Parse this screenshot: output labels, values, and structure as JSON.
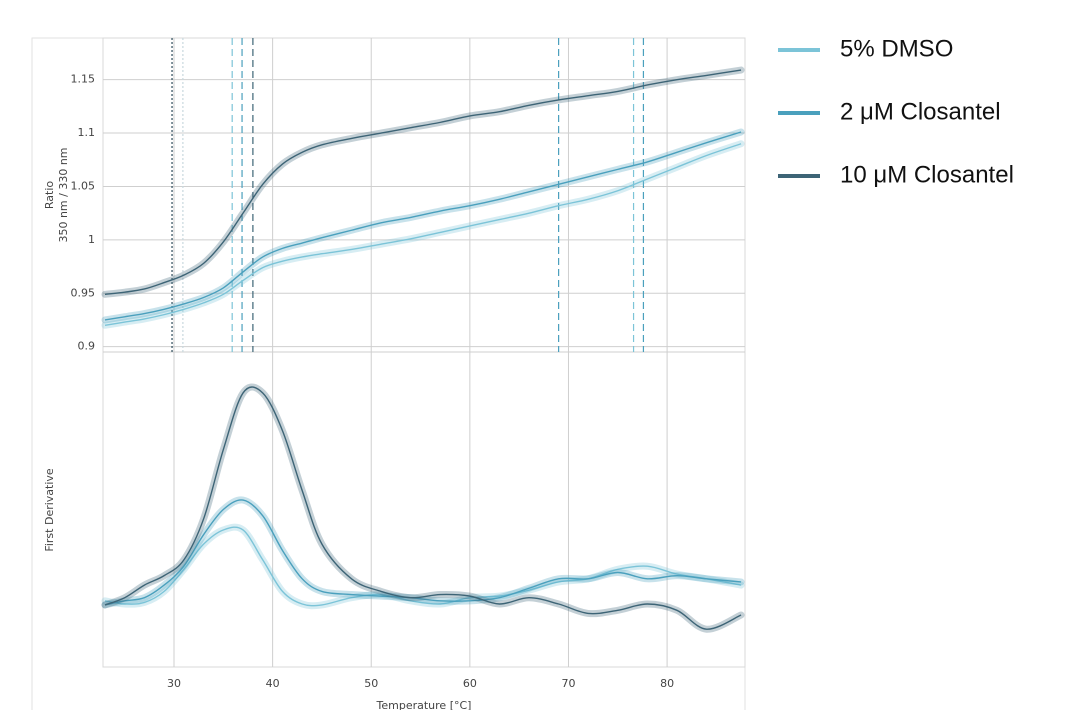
{
  "chart_data": [
    {
      "type": "line",
      "ylabel": [
        "Ratio",
        "350 nm / 330 nm"
      ],
      "x": [
        23,
        25,
        27,
        29,
        31,
        33,
        35,
        37,
        39,
        41,
        43,
        45,
        48,
        51,
        54,
        57,
        60,
        63,
        66,
        69,
        72,
        75,
        78,
        81,
        84,
        87.5
      ],
      "xlim": [
        22.8,
        87.9
      ],
      "xticks": [
        30,
        40,
        50,
        60,
        70,
        80
      ],
      "ylim": [
        0.895,
        1.189
      ],
      "yticks": [
        0.9,
        0.95,
        1,
        1.05,
        1.1,
        1.15
      ],
      "grid": true,
      "legend": "right",
      "series": [
        {
          "name": "5% DMSO",
          "color": "#7cc4d8",
          "values": [
            0.92,
            0.923,
            0.926,
            0.93,
            0.935,
            0.941,
            0.949,
            0.962,
            0.974,
            0.98,
            0.984,
            0.987,
            0.991,
            0.996,
            1.001,
            1.007,
            1.013,
            1.019,
            1.025,
            1.032,
            1.038,
            1.046,
            1.057,
            1.068,
            1.079,
            1.09
          ]
        },
        {
          "name": "2 μM Closantel",
          "color": "#4aa0bd",
          "values": [
            0.925,
            0.928,
            0.931,
            0.935,
            0.94,
            0.946,
            0.955,
            0.97,
            0.984,
            0.992,
            0.997,
            1.002,
            1.009,
            1.016,
            1.021,
            1.027,
            1.032,
            1.038,
            1.045,
            1.052,
            1.059,
            1.066,
            1.073,
            1.082,
            1.091,
            1.101
          ]
        },
        {
          "name": "10 μM Closantel",
          "color": "#3d6476",
          "values": [
            0.949,
            0.951,
            0.954,
            0.96,
            0.967,
            0.978,
            0.998,
            1.025,
            1.052,
            1.071,
            1.082,
            1.089,
            1.095,
            1.1,
            1.105,
            1.11,
            1.116,
            1.12,
            1.126,
            1.131,
            1.135,
            1.139,
            1.145,
            1.15,
            1.154,
            1.159
          ]
        }
      ],
      "vlines": [
        {
          "x": 29.8,
          "color": "#2c4a5a",
          "style": "dotted"
        },
        {
          "x": 30.9,
          "color": "#c8d8de",
          "style": "dotted"
        },
        {
          "x": 35.9,
          "color": "#7cc4d8",
          "style": "dashed"
        },
        {
          "x": 36.9,
          "color": "#4aa0bd",
          "style": "dashed"
        },
        {
          "x": 38.0,
          "color": "#3d6476",
          "style": "dashed"
        },
        {
          "x": 69.0,
          "color": "#4aa0bd",
          "style": "dashed"
        },
        {
          "x": 76.6,
          "color": "#7cc4d8",
          "style": "dashed"
        },
        {
          "x": 77.6,
          "color": "#4aa0bd",
          "style": "dashed"
        }
      ]
    },
    {
      "type": "line",
      "ylabel": "First Derivative",
      "xlabel": "Temperature [°C]",
      "x": [
        23,
        25,
        27,
        29,
        31,
        33,
        35,
        37,
        39,
        41,
        43,
        45,
        48,
        51,
        54,
        57,
        60,
        63,
        66,
        69,
        72,
        75,
        78,
        81,
        84,
        87.5
      ],
      "xlim": [
        22.8,
        87.9
      ],
      "xticks": [
        30,
        40,
        50,
        60,
        70,
        80
      ],
      "ylim": [
        0,
        100
      ],
      "grid": true,
      "series": [
        {
          "color": "#7cc4d8",
          "values": [
            21,
            20,
            20.5,
            24,
            31,
            39,
            43.5,
            43.5,
            34,
            24,
            20,
            19.7,
            22,
            23,
            21,
            20,
            22,
            22.5,
            24.4,
            27,
            28,
            31,
            32,
            29.5,
            28,
            26
          ]
        },
        {
          "color": "#4aa0bd",
          "values": [
            19.7,
            21,
            22,
            26,
            32,
            42,
            50,
            53,
            48,
            37,
            28,
            24,
            23,
            22.5,
            22,
            21,
            21,
            22,
            25,
            28,
            28,
            30,
            28,
            29,
            28,
            27
          ]
        },
        {
          "color": "#3d6476",
          "values": [
            19.7,
            22,
            26,
            29,
            34,
            47,
            69,
            87,
            87,
            75,
            56,
            39,
            28,
            24,
            22,
            23,
            22.5,
            20,
            22,
            20,
            17,
            18,
            20,
            18,
            12,
            16.5
          ]
        }
      ]
    }
  ]
}
